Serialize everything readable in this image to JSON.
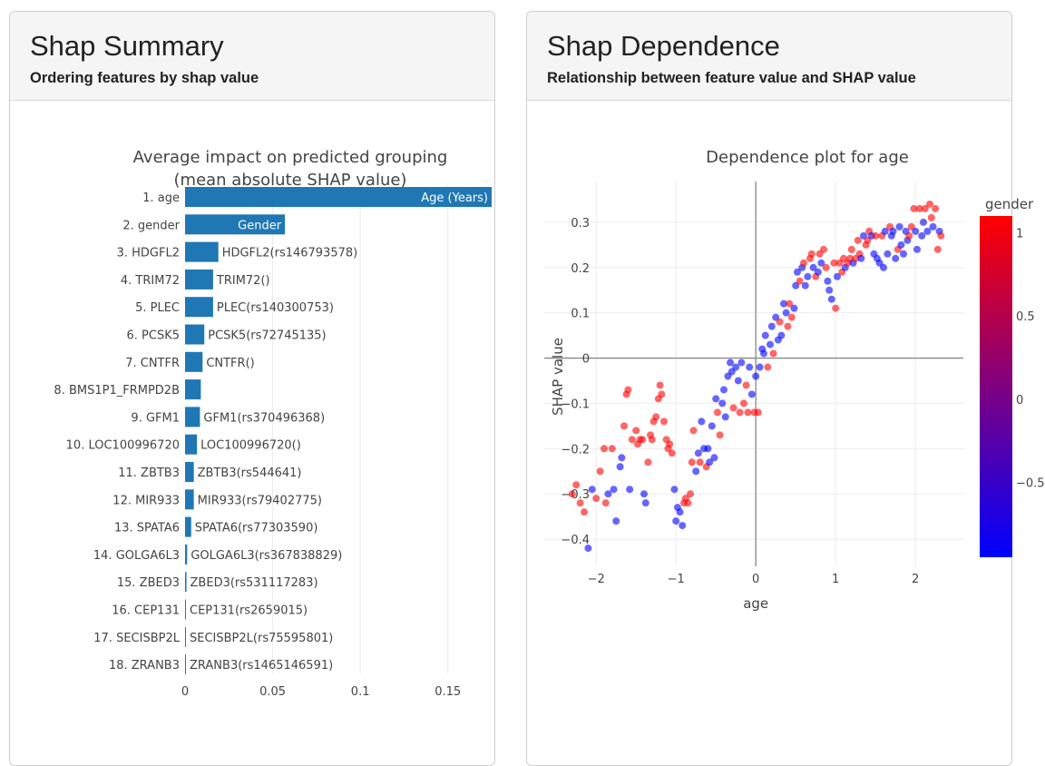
{
  "left_card": {
    "title": "Shap Summary",
    "subtitle": "Ordering features by shap value"
  },
  "right_card": {
    "title": "Shap Dependence",
    "subtitle": "Relationship between feature value and SHAP value"
  },
  "chart_data": [
    {
      "type": "bar",
      "orientation": "horizontal",
      "title": "Average impact on predicted grouping (mean absolute SHAP value)",
      "title_lines": [
        "Average impact on predicted grouping",
        "(mean absolute SHAP value)"
      ],
      "color": "#1f77b4",
      "xlim": [
        0,
        0.175
      ],
      "xticks": [
        0,
        0.05,
        0.1,
        0.15
      ],
      "xtick_labels": [
        "0",
        "0.05",
        "0.1",
        "0.15"
      ],
      "categories": [
        "1. age",
        "2. gender",
        "3. HDGFL2",
        "4. TRIM72",
        "5. PLEC",
        "6. PCSK5",
        "7. CNTFR",
        "8. BMS1P1_FRMPD2B",
        "9. GFM1",
        "10. LOC100996720",
        "11. ZBTB3",
        "12. MIR933",
        "13. SPATA6",
        "14. GOLGA6L3",
        "15. ZBED3",
        "16. CEP131",
        "17. SECISBP2L",
        "18. ZRANB3"
      ],
      "values": [
        0.175,
        0.057,
        0.019,
        0.016,
        0.016,
        0.011,
        0.01,
        0.009,
        0.0085,
        0.0068,
        0.005,
        0.005,
        0.0035,
        0.0012,
        0.0008,
        0.0005,
        0.0004,
        0.0003
      ],
      "bar_labels": [
        "Age (Years)",
        "Gender",
        "HDGFL2(rs146793578)",
        "TRIM72()",
        "PLEC(rs140300753)",
        "PCSK5(rs72745135)",
        "CNTFR()",
        "",
        "GFM1(rs370496368)",
        "LOC100996720()",
        "ZBTB3(rs544641)",
        "MIR933(rs79402775)",
        "SPATA6(rs77303590)",
        "GOLGA6L3(rs367838829)",
        "ZBED3(rs531117283)",
        "CEP131(rs2659015)",
        "SECISBP2L(rs75595801)",
        "ZRANB3(rs1465146591)"
      ]
    },
    {
      "type": "scatter",
      "title": "Dependence plot for age",
      "xlabel": "age",
      "ylabel": "SHAP value",
      "xlim": [
        -2.65,
        2.6
      ],
      "ylim": [
        -0.46,
        0.39
      ],
      "xticks": [
        -2,
        -1,
        0,
        1,
        2
      ],
      "xtick_labels": [
        "−2",
        "−1",
        "0",
        "1",
        "2"
      ],
      "yticks": [
        -0.4,
        -0.3,
        -0.2,
        -0.1,
        0,
        0.1,
        0.2,
        0.3
      ],
      "ytick_labels": [
        "−0.4",
        "−0.3",
        "−0.2",
        "−0.1",
        "0",
        "0.1",
        "0.2",
        "0.3"
      ],
      "colorbar": {
        "title": "gender",
        "colors": [
          "#ff0000",
          "#0000ff"
        ],
        "range": [
          -0.95,
          1.1
        ],
        "ticks": [
          1,
          0.5,
          0,
          -0.5
        ],
        "tick_labels": [
          "1",
          "0.5",
          "0",
          "−0.5"
        ]
      },
      "points": [
        {
          "x": -2.3,
          "y": -0.3,
          "c": 1
        },
        {
          "x": -2.25,
          "y": -0.28,
          "c": 1
        },
        {
          "x": -2.2,
          "y": -0.32,
          "c": 1
        },
        {
          "x": -2.15,
          "y": -0.34,
          "c": 1
        },
        {
          "x": -2.1,
          "y": -0.42,
          "c": -1
        },
        {
          "x": -2.05,
          "y": -0.29,
          "c": -1
        },
        {
          "x": -2.0,
          "y": -0.31,
          "c": 1
        },
        {
          "x": -1.95,
          "y": -0.25,
          "c": 1
        },
        {
          "x": -1.9,
          "y": -0.2,
          "c": 1
        },
        {
          "x": -1.88,
          "y": -0.32,
          "c": 1
        },
        {
          "x": -1.85,
          "y": -0.3,
          "c": -1
        },
        {
          "x": -1.8,
          "y": -0.2,
          "c": 1
        },
        {
          "x": -1.78,
          "y": -0.29,
          "c": -1
        },
        {
          "x": -1.75,
          "y": -0.36,
          "c": -1
        },
        {
          "x": -1.7,
          "y": -0.24,
          "c": -1
        },
        {
          "x": -1.68,
          "y": -0.22,
          "c": -1
        },
        {
          "x": -1.65,
          "y": -0.15,
          "c": 1
        },
        {
          "x": -1.62,
          "y": -0.08,
          "c": 1
        },
        {
          "x": -1.6,
          "y": -0.07,
          "c": 1
        },
        {
          "x": -1.58,
          "y": -0.29,
          "c": -1
        },
        {
          "x": -1.55,
          "y": -0.18,
          "c": 1
        },
        {
          "x": -1.5,
          "y": -0.16,
          "c": 1
        },
        {
          "x": -1.48,
          "y": -0.19,
          "c": 1
        },
        {
          "x": -1.45,
          "y": -0.18,
          "c": 1
        },
        {
          "x": -1.42,
          "y": -0.18,
          "c": 1
        },
        {
          "x": -1.4,
          "y": -0.3,
          "c": -1
        },
        {
          "x": -1.38,
          "y": -0.32,
          "c": -1
        },
        {
          "x": -1.35,
          "y": -0.23,
          "c": 1
        },
        {
          "x": -1.32,
          "y": -0.17,
          "c": 1
        },
        {
          "x": -1.3,
          "y": -0.18,
          "c": 1
        },
        {
          "x": -1.28,
          "y": -0.14,
          "c": 1
        },
        {
          "x": -1.25,
          "y": -0.13,
          "c": 1
        },
        {
          "x": -1.22,
          "y": -0.09,
          "c": 1
        },
        {
          "x": -1.2,
          "y": -0.06,
          "c": 1
        },
        {
          "x": -1.18,
          "y": -0.08,
          "c": 1
        },
        {
          "x": -1.15,
          "y": -0.14,
          "c": 1
        },
        {
          "x": -1.12,
          "y": -0.18,
          "c": 1
        },
        {
          "x": -1.1,
          "y": -0.2,
          "c": 1
        },
        {
          "x": -1.08,
          "y": -0.19,
          "c": 1
        },
        {
          "x": -1.05,
          "y": -0.21,
          "c": 1
        },
        {
          "x": -1.02,
          "y": -0.29,
          "c": -1
        },
        {
          "x": -1.0,
          "y": -0.36,
          "c": -1
        },
        {
          "x": -0.98,
          "y": -0.33,
          "c": -1
        },
        {
          "x": -0.95,
          "y": -0.34,
          "c": -1
        },
        {
          "x": -0.92,
          "y": -0.37,
          "c": -1
        },
        {
          "x": -0.9,
          "y": -0.32,
          "c": 1
        },
        {
          "x": -0.88,
          "y": -0.31,
          "c": 1
        },
        {
          "x": -0.85,
          "y": -0.32,
          "c": 1
        },
        {
          "x": -0.82,
          "y": -0.3,
          "c": 1
        },
        {
          "x": -0.8,
          "y": -0.23,
          "c": 1
        },
        {
          "x": -0.78,
          "y": -0.16,
          "c": 1
        },
        {
          "x": -0.75,
          "y": -0.25,
          "c": -1
        },
        {
          "x": -0.72,
          "y": -0.21,
          "c": -1
        },
        {
          "x": -0.7,
          "y": -0.23,
          "c": 1
        },
        {
          "x": -0.68,
          "y": -0.14,
          "c": -1
        },
        {
          "x": -0.65,
          "y": -0.2,
          "c": -1
        },
        {
          "x": -0.62,
          "y": -0.24,
          "c": 1
        },
        {
          "x": -0.6,
          "y": -0.2,
          "c": -1
        },
        {
          "x": -0.58,
          "y": -0.23,
          "c": -1
        },
        {
          "x": -0.55,
          "y": -0.15,
          "c": -1
        },
        {
          "x": -0.52,
          "y": -0.22,
          "c": -1
        },
        {
          "x": -0.5,
          "y": -0.09,
          "c": -1
        },
        {
          "x": -0.48,
          "y": -0.12,
          "c": 1
        },
        {
          "x": -0.45,
          "y": -0.17,
          "c": 1
        },
        {
          "x": -0.42,
          "y": -0.1,
          "c": -1
        },
        {
          "x": -0.4,
          "y": -0.07,
          "c": -1
        },
        {
          "x": -0.38,
          "y": -0.13,
          "c": -1
        },
        {
          "x": -0.35,
          "y": -0.04,
          "c": -1
        },
        {
          "x": -0.32,
          "y": -0.01,
          "c": -1
        },
        {
          "x": -0.3,
          "y": -0.03,
          "c": -1
        },
        {
          "x": -0.28,
          "y": -0.11,
          "c": 1
        },
        {
          "x": -0.25,
          "y": -0.02,
          "c": -1
        },
        {
          "x": -0.22,
          "y": -0.05,
          "c": -1
        },
        {
          "x": -0.2,
          "y": -0.12,
          "c": 1
        },
        {
          "x": -0.18,
          "y": -0.01,
          "c": -1
        },
        {
          "x": -0.15,
          "y": -0.1,
          "c": 1
        },
        {
          "x": -0.12,
          "y": -0.06,
          "c": 1
        },
        {
          "x": -0.1,
          "y": -0.12,
          "c": 1
        },
        {
          "x": -0.08,
          "y": -0.02,
          "c": -1
        },
        {
          "x": -0.05,
          "y": -0.08,
          "c": -1
        },
        {
          "x": -0.02,
          "y": -0.12,
          "c": 1
        },
        {
          "x": 0.0,
          "y": -0.04,
          "c": -1
        },
        {
          "x": 0.03,
          "y": -0.12,
          "c": 1
        },
        {
          "x": 0.05,
          "y": -0.02,
          "c": -1
        },
        {
          "x": 0.08,
          "y": 0.02,
          "c": -1
        },
        {
          "x": 0.1,
          "y": 0.01,
          "c": -1
        },
        {
          "x": 0.12,
          "y": 0.05,
          "c": -1
        },
        {
          "x": 0.15,
          "y": -0.02,
          "c": 1
        },
        {
          "x": 0.18,
          "y": 0.03,
          "c": -1
        },
        {
          "x": 0.2,
          "y": 0.07,
          "c": -1
        },
        {
          "x": 0.22,
          "y": 0.01,
          "c": 1
        },
        {
          "x": 0.25,
          "y": 0.09,
          "c": -1
        },
        {
          "x": 0.28,
          "y": 0.04,
          "c": -1
        },
        {
          "x": 0.3,
          "y": 0.08,
          "c": 1
        },
        {
          "x": 0.32,
          "y": 0.05,
          "c": -1
        },
        {
          "x": 0.35,
          "y": 0.12,
          "c": -1
        },
        {
          "x": 0.38,
          "y": 0.1,
          "c": -1
        },
        {
          "x": 0.4,
          "y": 0.07,
          "c": 1
        },
        {
          "x": 0.42,
          "y": 0.12,
          "c": 1
        },
        {
          "x": 0.45,
          "y": 0.09,
          "c": 1
        },
        {
          "x": 0.48,
          "y": 0.11,
          "c": -1
        },
        {
          "x": 0.5,
          "y": 0.16,
          "c": -1
        },
        {
          "x": 0.52,
          "y": 0.19,
          "c": -1
        },
        {
          "x": 0.55,
          "y": 0.17,
          "c": 1
        },
        {
          "x": 0.58,
          "y": 0.2,
          "c": -1
        },
        {
          "x": 0.6,
          "y": 0.21,
          "c": 1
        },
        {
          "x": 0.62,
          "y": 0.16,
          "c": -1
        },
        {
          "x": 0.65,
          "y": 0.18,
          "c": -1
        },
        {
          "x": 0.68,
          "y": 0.22,
          "c": 1
        },
        {
          "x": 0.7,
          "y": 0.23,
          "c": 1
        },
        {
          "x": 0.72,
          "y": 0.2,
          "c": -1
        },
        {
          "x": 0.75,
          "y": 0.18,
          "c": 1
        },
        {
          "x": 0.78,
          "y": 0.19,
          "c": -1
        },
        {
          "x": 0.8,
          "y": 0.23,
          "c": 1
        },
        {
          "x": 0.82,
          "y": 0.21,
          "c": -1
        },
        {
          "x": 0.85,
          "y": 0.24,
          "c": 1
        },
        {
          "x": 0.88,
          "y": 0.2,
          "c": 1
        },
        {
          "x": 0.9,
          "y": 0.17,
          "c": -1
        },
        {
          "x": 0.92,
          "y": 0.15,
          "c": -1
        },
        {
          "x": 0.95,
          "y": 0.13,
          "c": -1
        },
        {
          "x": 0.98,
          "y": 0.21,
          "c": 1
        },
        {
          "x": 1.0,
          "y": 0.11,
          "c": 1
        },
        {
          "x": 1.02,
          "y": 0.18,
          "c": -1
        },
        {
          "x": 1.05,
          "y": 0.21,
          "c": 1
        },
        {
          "x": 1.08,
          "y": 0.19,
          "c": 1
        },
        {
          "x": 1.1,
          "y": 0.22,
          "c": 1
        },
        {
          "x": 1.12,
          "y": 0.2,
          "c": -1
        },
        {
          "x": 1.15,
          "y": 0.21,
          "c": 1
        },
        {
          "x": 1.18,
          "y": 0.22,
          "c": 1
        },
        {
          "x": 1.2,
          "y": 0.24,
          "c": 1
        },
        {
          "x": 1.22,
          "y": 0.21,
          "c": -1
        },
        {
          "x": 1.25,
          "y": 0.22,
          "c": 1
        },
        {
          "x": 1.28,
          "y": 0.26,
          "c": 1
        },
        {
          "x": 1.3,
          "y": 0.23,
          "c": 1
        },
        {
          "x": 1.32,
          "y": 0.22,
          "c": -1
        },
        {
          "x": 1.35,
          "y": 0.27,
          "c": -1
        },
        {
          "x": 1.38,
          "y": 0.25,
          "c": 1
        },
        {
          "x": 1.4,
          "y": 0.26,
          "c": 1
        },
        {
          "x": 1.42,
          "y": 0.28,
          "c": 1
        },
        {
          "x": 1.45,
          "y": 0.27,
          "c": -1
        },
        {
          "x": 1.48,
          "y": 0.23,
          "c": -1
        },
        {
          "x": 1.5,
          "y": 0.27,
          "c": 1
        },
        {
          "x": 1.52,
          "y": 0.22,
          "c": -1
        },
        {
          "x": 1.55,
          "y": 0.21,
          "c": -1
        },
        {
          "x": 1.58,
          "y": 0.27,
          "c": 1
        },
        {
          "x": 1.6,
          "y": 0.2,
          "c": -1
        },
        {
          "x": 1.62,
          "y": 0.28,
          "c": -1
        },
        {
          "x": 1.65,
          "y": 0.23,
          "c": -1
        },
        {
          "x": 1.68,
          "y": 0.29,
          "c": 1
        },
        {
          "x": 1.7,
          "y": 0.27,
          "c": -1
        },
        {
          "x": 1.72,
          "y": 0.28,
          "c": -1
        },
        {
          "x": 1.75,
          "y": 0.22,
          "c": -1
        },
        {
          "x": 1.78,
          "y": 0.24,
          "c": 1
        },
        {
          "x": 1.8,
          "y": 0.29,
          "c": -1
        },
        {
          "x": 1.82,
          "y": 0.25,
          "c": -1
        },
        {
          "x": 1.85,
          "y": 0.23,
          "c": -1
        },
        {
          "x": 1.88,
          "y": 0.28,
          "c": -1
        },
        {
          "x": 1.9,
          "y": 0.26,
          "c": -1
        },
        {
          "x": 1.92,
          "y": 0.27,
          "c": 1
        },
        {
          "x": 1.95,
          "y": 0.29,
          "c": 1
        },
        {
          "x": 1.98,
          "y": 0.33,
          "c": 1
        },
        {
          "x": 2.0,
          "y": 0.28,
          "c": -1
        },
        {
          "x": 2.02,
          "y": 0.24,
          "c": -1
        },
        {
          "x": 2.05,
          "y": 0.33,
          "c": 1
        },
        {
          "x": 2.08,
          "y": 0.27,
          "c": -1
        },
        {
          "x": 2.1,
          "y": 0.3,
          "c": -1
        },
        {
          "x": 2.12,
          "y": 0.33,
          "c": 1
        },
        {
          "x": 2.15,
          "y": 0.28,
          "c": -1
        },
        {
          "x": 2.18,
          "y": 0.34,
          "c": 1
        },
        {
          "x": 2.2,
          "y": 0.31,
          "c": 1
        },
        {
          "x": 2.22,
          "y": 0.29,
          "c": -1
        },
        {
          "x": 2.25,
          "y": 0.33,
          "c": 1
        },
        {
          "x": 2.28,
          "y": 0.24,
          "c": 1
        },
        {
          "x": 2.3,
          "y": 0.28,
          "c": -1
        },
        {
          "x": 2.32,
          "y": 0.27,
          "c": 1
        }
      ]
    }
  ]
}
